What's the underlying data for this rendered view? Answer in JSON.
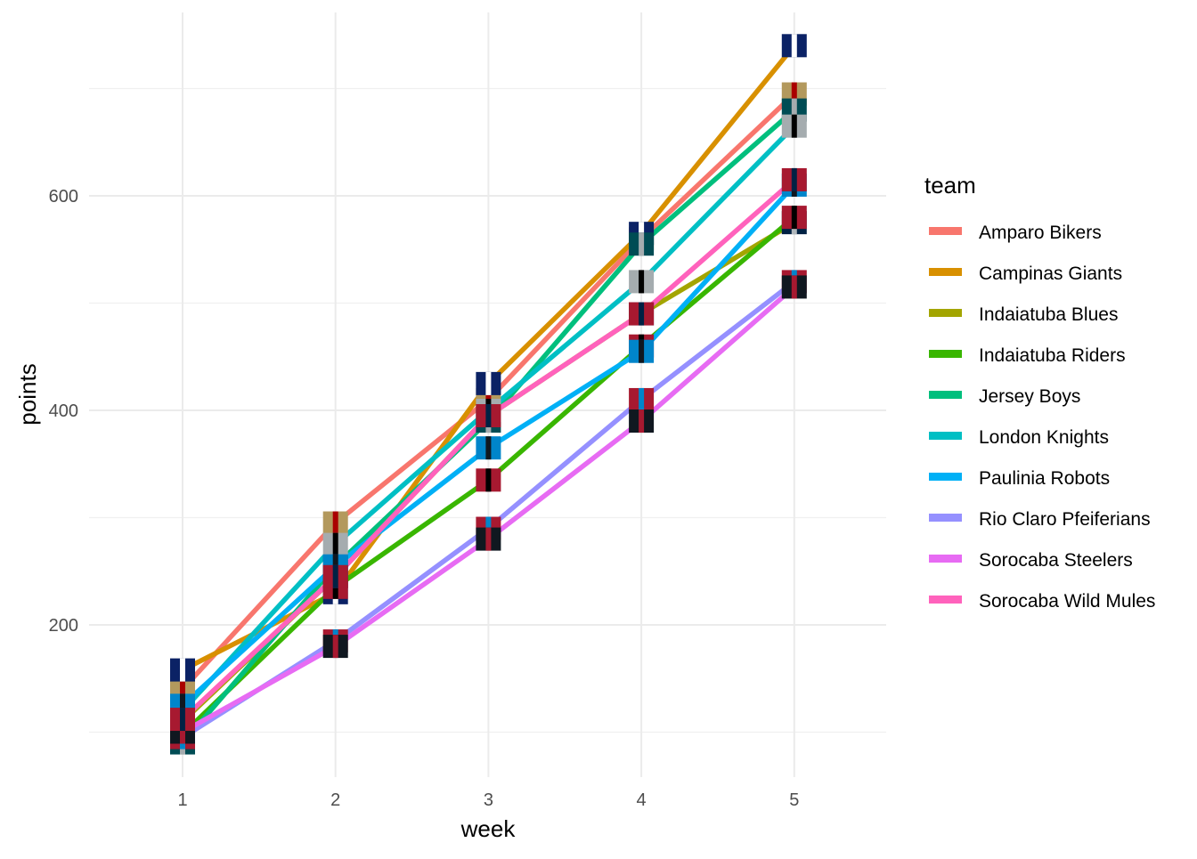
{
  "chart_data": {
    "type": "line",
    "title": "",
    "xlabel": "week",
    "ylabel": "points",
    "x": [
      1,
      2,
      3,
      4,
      5
    ],
    "x_ticks": [
      "1",
      "2",
      "3",
      "4",
      "5"
    ],
    "y_ticks": [
      200,
      400,
      600
    ],
    "xlim": [
      0.8,
      5.6
    ],
    "ylim": [
      72,
      770
    ],
    "grid": true,
    "legend": {
      "title": "team",
      "position": "right"
    },
    "series": [
      {
        "name": "Amparo Bikers",
        "color": "#F8766D",
        "values": [
          140,
          295,
          410,
          560,
          695
        ]
      },
      {
        "name": "Campinas Giants",
        "color": "#D89000",
        "values": [
          158,
          230,
          425,
          565,
          740
        ]
      },
      {
        "name": "Indaiatuba Blues",
        "color": "#A3A500",
        "values": [
          110,
          245,
          395,
          490,
          575
        ]
      },
      {
        "name": "Indaiatuba Riders",
        "color": "#39B600",
        "values": [
          98,
          235,
          335,
          460,
          580
        ]
      },
      {
        "name": "Jersey Boys",
        "color": "#00BF7D",
        "values": [
          90,
          255,
          390,
          555,
          680
        ]
      },
      {
        "name": "London Knights",
        "color": "#00BFC4",
        "values": [
          120,
          275,
          400,
          520,
          665
        ]
      },
      {
        "name": "Paulinia Robots",
        "color": "#00B0F6",
        "values": [
          125,
          255,
          365,
          455,
          610
        ]
      },
      {
        "name": "Rio Claro Pfeiferians",
        "color": "#9590FF",
        "values": [
          95,
          185,
          290,
          410,
          520
        ]
      },
      {
        "name": "Sorocaba Steelers",
        "color": "#E76BF3",
        "values": [
          100,
          180,
          280,
          390,
          515
        ]
      },
      {
        "name": "Sorocaba Wild Mules",
        "color": "#FF62BC",
        "values": [
          112,
          245,
          395,
          490,
          615
        ]
      }
    ]
  }
}
